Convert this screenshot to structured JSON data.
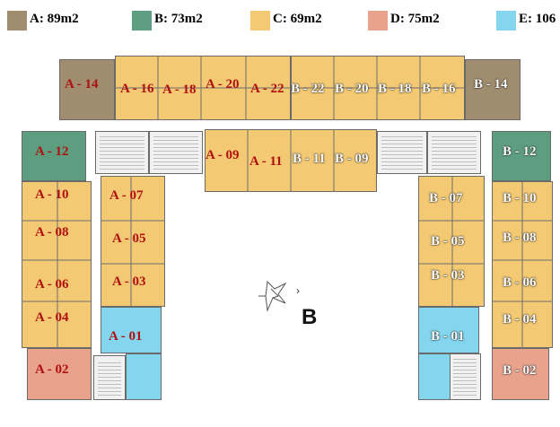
{
  "legend": [
    {
      "key": "A",
      "text": "A: 89m2",
      "color": "#a08c6e"
    },
    {
      "key": "B",
      "text": "B: 73m2",
      "color": "#5d9d80"
    },
    {
      "key": "C",
      "text": "C: 69m2",
      "color": "#f3c973"
    },
    {
      "key": "D",
      "text": "D: 75m2",
      "color": "#e9a38c"
    },
    {
      "key": "E",
      "text": "E: 106",
      "color": "#83d6ee"
    }
  ],
  "units": {
    "a14": "A - 14",
    "a16": "A - 16",
    "a18": "A - 18",
    "a20": "A - 20",
    "a22": "A - 22",
    "b22": "B - 22",
    "b20": "B - 20",
    "b18": "B - 18",
    "b16": "B - 16",
    "b14": "B - 14",
    "a12": "A - 12",
    "a10": "A - 10",
    "a08": "A - 08",
    "a06": "A - 06",
    "a04": "A - 04",
    "a02": "A - 02",
    "a09": "A - 09",
    "a11": "A - 11",
    "b11": "B - 11",
    "b09": "B - 09",
    "a07": "A - 07",
    "a05": "A - 05",
    "a03": "A - 03",
    "a01": "A - 01",
    "b07": "B - 07",
    "b05": "B - 05",
    "b03": "B - 03",
    "b01": "B - 01",
    "b12": "B - 12",
    "b10": "B - 10",
    "b08": "B - 08",
    "b06": "B - 06",
    "b04": "B - 04",
    "b02": "B - 02"
  },
  "compass": {
    "letter": "B",
    "icon": "north-arrow-icon"
  }
}
